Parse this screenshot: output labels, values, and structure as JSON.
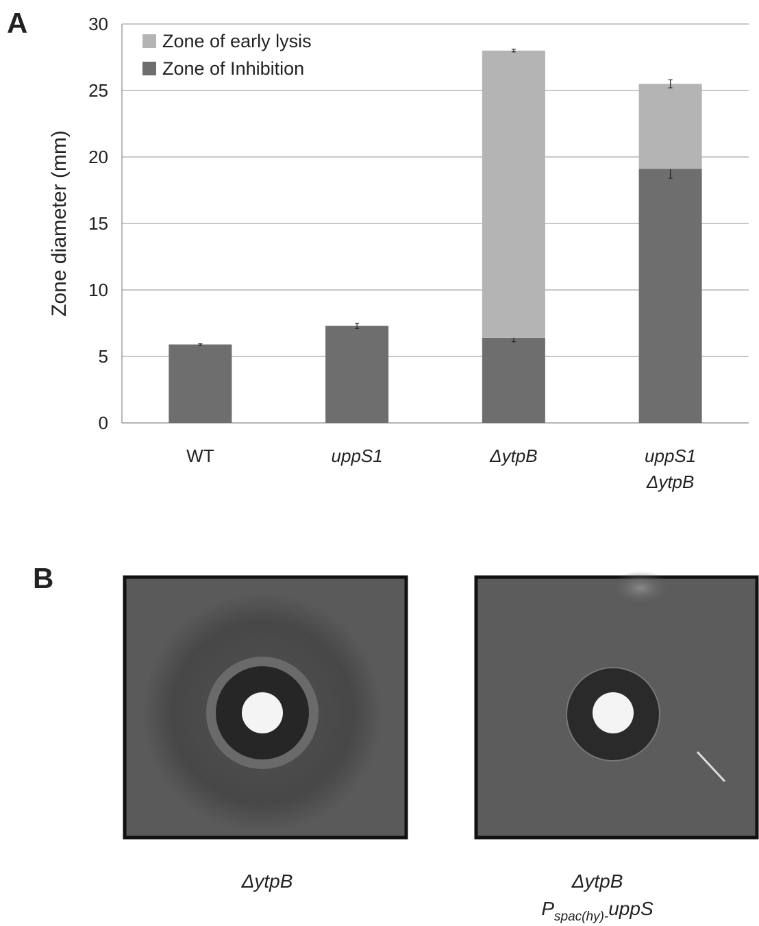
{
  "chart_data": {
    "type": "stacked_bar",
    "panel_label": "A",
    "ylabel": "Zone diameter (mm)",
    "categories": [
      [
        "WT"
      ],
      [
        "uppS1"
      ],
      [
        "ΔytpB"
      ],
      [
        "uppS1",
        "ΔytpB"
      ]
    ],
    "series": [
      {
        "name": "Zone of Inhibition",
        "color": "#6e6e6e",
        "values": [
          5.9,
          7.3,
          6.4,
          19.1
        ],
        "errors": [
          0.05,
          0.2,
          0.3,
          0.7
        ]
      },
      {
        "name": "Zone of early lysis",
        "color": "#b4b4b4",
        "values": [
          0,
          0,
          21.6,
          6.4
        ],
        "errors": [
          null,
          null,
          0.1,
          0.3
        ]
      }
    ],
    "ylim": [
      0,
      30
    ],
    "yticks": [
      0,
      5,
      10,
      15,
      20,
      25,
      30
    ],
    "grid": true,
    "legend": "top-left"
  },
  "panel_b": {
    "label": "B",
    "photos": [
      {
        "caption": "ΔytpB"
      },
      {
        "caption": "ΔytpB",
        "caption2": {
          "base": "P",
          "sub": "spac(hy)-",
          "tail": "uppS"
        }
      }
    ]
  }
}
